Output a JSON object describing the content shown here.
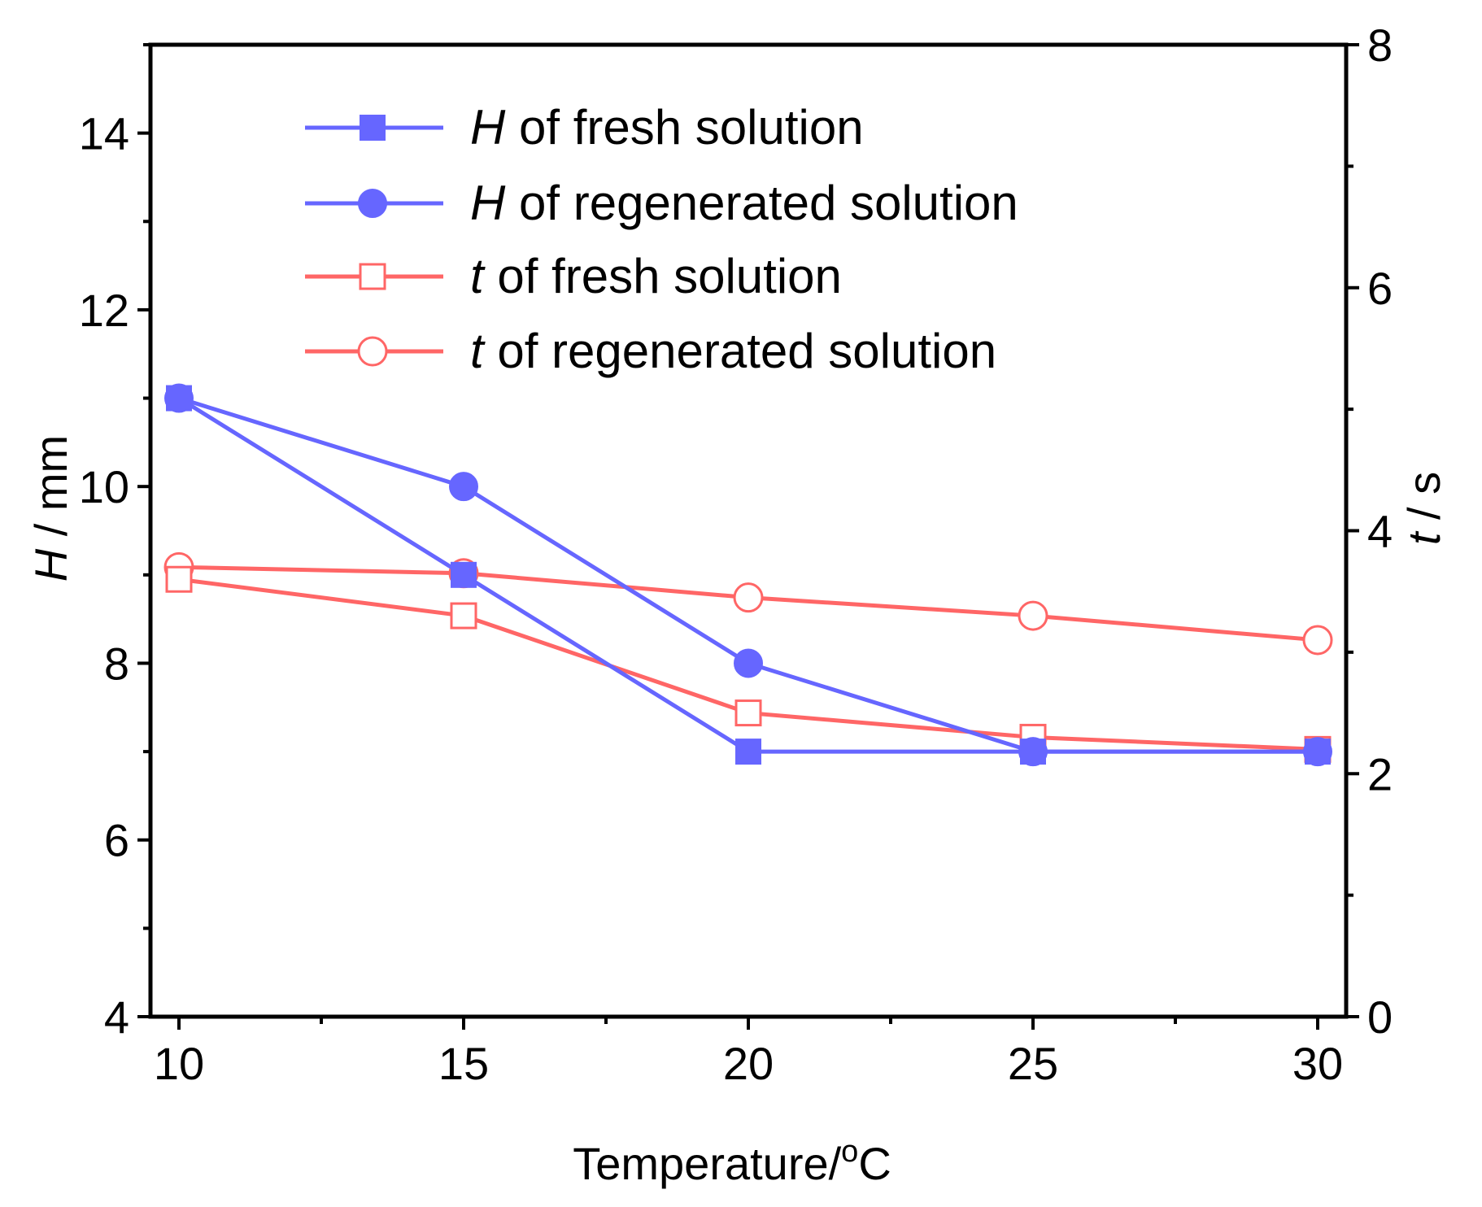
{
  "chart_data": {
    "type": "line",
    "xlabel_main": "Temperature/",
    "xlabel_sup": "o",
    "xlabel_tail": "C",
    "ylabel_left_var": "H",
    "ylabel_left_unit": " / mm",
    "ylabel_right_var": "t",
    "ylabel_right_unit": " / s",
    "x": [
      10,
      15,
      20,
      25,
      30
    ],
    "xlim": [
      9.5,
      30.5
    ],
    "ylim_left": [
      4,
      15
    ],
    "ylim_right": [
      0,
      8
    ],
    "x_ticks": [
      10,
      15,
      20,
      25,
      30
    ],
    "y_left_ticks": [
      4,
      6,
      8,
      10,
      12,
      14
    ],
    "y_right_ticks": [
      0,
      2,
      4,
      6,
      8
    ],
    "series": [
      {
        "name_var": "H",
        "name_rest": " of fresh solution",
        "axis": "left",
        "marker": "square",
        "filled": true,
        "color": "#6666ff",
        "values": [
          11,
          9,
          7,
          7,
          7
        ]
      },
      {
        "name_var": "H",
        "name_rest": " of regenerated solution",
        "axis": "left",
        "marker": "circle",
        "filled": true,
        "color": "#6666ff",
        "values": [
          11,
          10,
          8,
          7,
          7
        ]
      },
      {
        "name_var": "t",
        "name_rest": " of fresh solution",
        "axis": "right",
        "marker": "square",
        "filled": false,
        "color": "#ff6666",
        "values": [
          3.6,
          3.3,
          2.5,
          2.3,
          2.2
        ]
      },
      {
        "name_var": "t",
        "name_rest": " of regenerated solution",
        "axis": "right",
        "marker": "circle",
        "filled": false,
        "color": "#ff6666",
        "values": [
          3.7,
          3.65,
          3.45,
          3.3,
          3.1
        ]
      }
    ]
  }
}
